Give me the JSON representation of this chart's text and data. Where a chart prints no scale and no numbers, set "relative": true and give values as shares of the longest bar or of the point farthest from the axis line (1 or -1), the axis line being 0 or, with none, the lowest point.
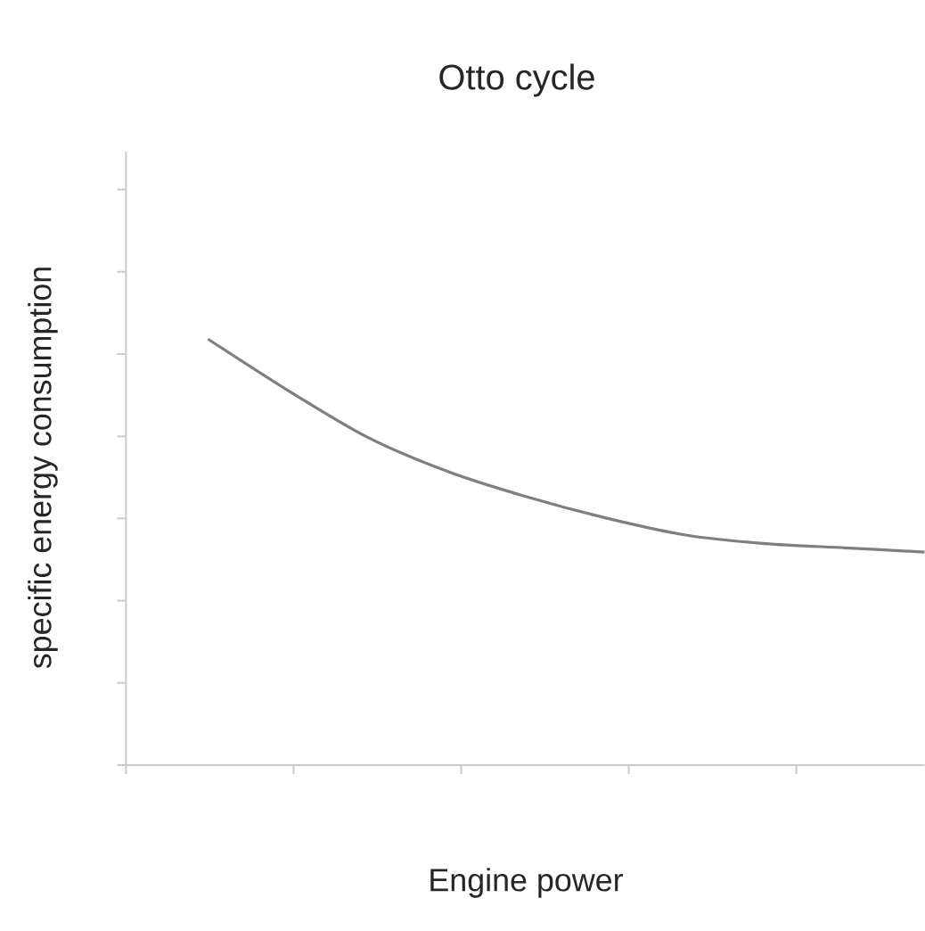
{
  "chart_data": {
    "type": "line",
    "title": "Otto cycle",
    "xlabel": "Engine power",
    "ylabel": "specific energy consumption",
    "relative": true,
    "categories": [
      null,
      null,
      null,
      null,
      null,
      null,
      null,
      null,
      null,
      null
    ],
    "series": [
      {
        "color": "#7f7f7f",
        "values": [
          1,
          0.88,
          0.77,
          0.69,
          0.63,
          0.58,
          0.54,
          0.52,
          0.51,
          0.5
        ]
      }
    ],
    "grid": false,
    "marker": "none",
    "line_style": "solid"
  }
}
